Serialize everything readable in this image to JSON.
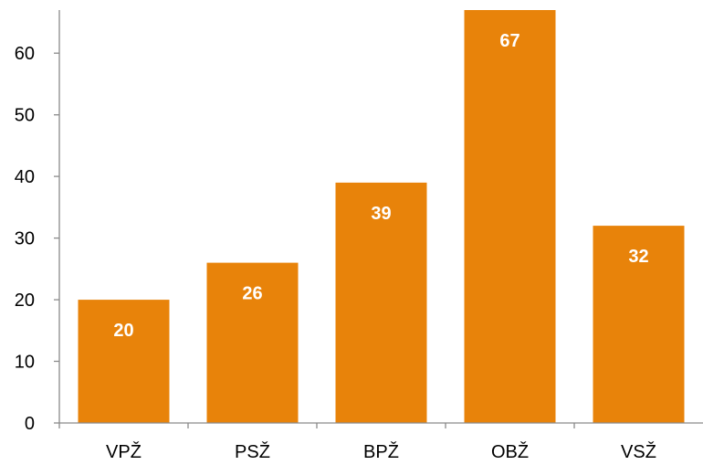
{
  "chart_data": {
    "type": "bar",
    "title": "",
    "xlabel": "",
    "ylabel": "",
    "categories": [
      "VPŽ",
      "PSŽ",
      "BPŽ",
      "OBŽ",
      "VSŽ"
    ],
    "values": [
      20,
      26,
      39,
      67,
      32
    ],
    "data_labels": [
      "20",
      "26",
      "39",
      "67",
      "32"
    ],
    "ylim": [
      0,
      67
    ],
    "yticks": [
      0,
      10,
      20,
      30,
      40,
      50,
      60
    ],
    "bar_color": "#E8830A",
    "data_label_color": "#ffffff",
    "axis_color": "#8a8a8a",
    "grid": false,
    "legend": "none"
  }
}
